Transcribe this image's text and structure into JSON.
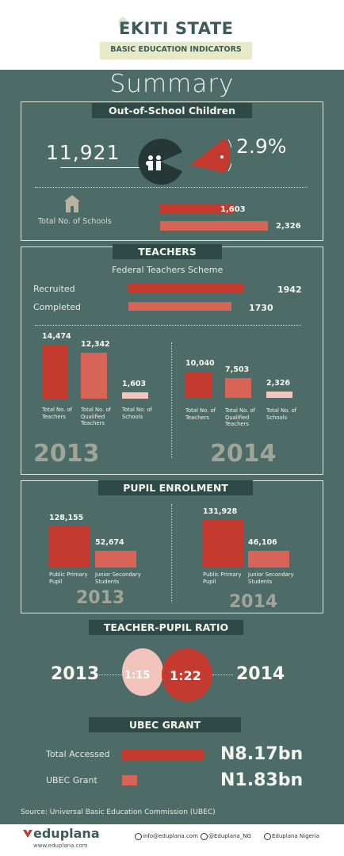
{
  "header": {
    "title": "EKITI STATE",
    "subtitle": "BASIC EDUCATION INDICATORS"
  },
  "summary_title": "Summary",
  "out_of_school": {
    "tab": "Out-of-School Children",
    "count": "11,921",
    "percent": "2.9%",
    "percent_value": 2.9,
    "schools_label": "Total No. of Schools",
    "schools_bars": [
      {
        "label": "1,603",
        "value": 1603
      },
      {
        "label": "2,326",
        "value": 2326
      }
    ]
  },
  "teachers": {
    "tab": "TEACHERS",
    "scheme": "Federal Teachers Scheme",
    "recruited_label": "Recruited",
    "recruited_value": "1942",
    "completed_label": "Completed",
    "completed_value": "1730",
    "y2013": {
      "year": "2013",
      "bars": [
        {
          "value_label": "14,474",
          "value": 14474,
          "label": "Total No. of Teachers"
        },
        {
          "value_label": "12,342",
          "value": 12342,
          "label": "Total No. of Qualified Teachers"
        },
        {
          "value_label": "1,603",
          "value": 1603,
          "label": "Total No. of Schools"
        }
      ]
    },
    "y2014": {
      "year": "2014",
      "bars": [
        {
          "value_label": "10,040",
          "value": 10040,
          "label": "Total No. of Teachers"
        },
        {
          "value_label": "7,503",
          "value": 7503,
          "label": "Total No. of Qualified Teachers"
        },
        {
          "value_label": "2,326",
          "value": 2326,
          "label": "Total No. of Schools"
        }
      ]
    }
  },
  "enrolment": {
    "tab": "PUPIL ENROLMENT",
    "y2013": {
      "year": "2013",
      "bars": [
        {
          "value_label": "128,155",
          "value": 128155,
          "label": "Public Primary Pupil"
        },
        {
          "value_label": "52,674",
          "value": 52674,
          "label": "Junior Secondary Students"
        }
      ]
    },
    "y2014": {
      "year": "2014",
      "bars": [
        {
          "value_label": "131,928",
          "value": 131928,
          "label": "Public Primary Pupil"
        },
        {
          "value_label": "46,106",
          "value": 46106,
          "label": "Junior Secondary Students"
        }
      ]
    }
  },
  "ratio": {
    "tab": "TEACHER-PUPIL RATIO",
    "year1": "2013",
    "ratio1": "1:15",
    "year2": "2014",
    "ratio2": "1:22"
  },
  "ubec": {
    "tab": "UBEC GRANT",
    "accessed_label": "Total Accessed",
    "accessed_value": "N8.17bn",
    "accessed_num": 8.17,
    "grant_label": "UBEC Grant",
    "grant_value": "N1.83bn",
    "grant_num": 1.83
  },
  "source": "Source: Universal Basic Education Commission (UBEC)",
  "footer": {
    "brand": "eduplana",
    "site": "www.eduplana.com",
    "email": "info@eduplana.com",
    "twitter": "@Eduplana_NG",
    "facebook": "Eduplana Nigeria"
  },
  "colors": {
    "background": "#4d6b67",
    "accent": "#c43a2f",
    "light_accent": "#f3c6bd",
    "tab": "#2f4946"
  },
  "icons": [
    "leaf-icon",
    "pacman-chart-icon",
    "children-icon",
    "school-icon",
    "twitter-icon",
    "facebook-icon",
    "email-icon"
  ]
}
